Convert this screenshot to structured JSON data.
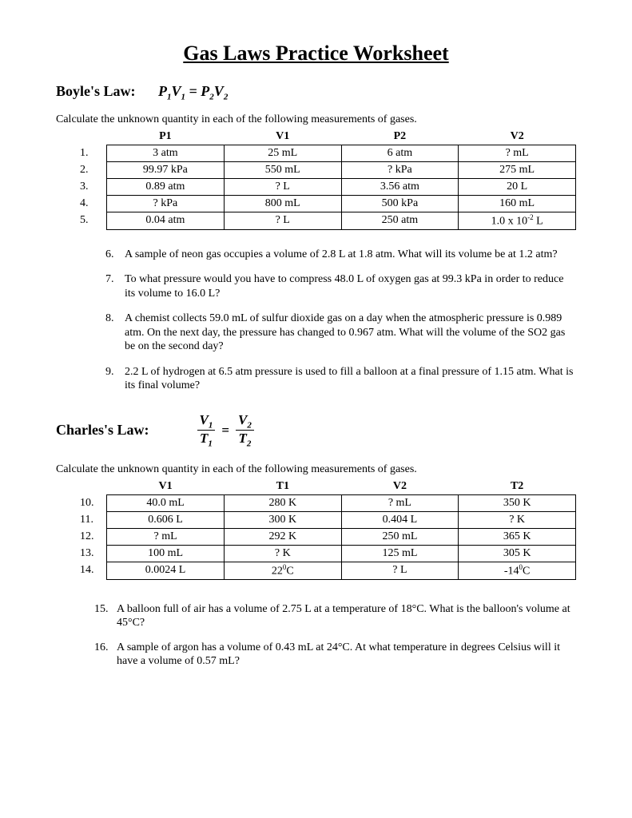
{
  "title": "Gas Laws Practice Worksheet",
  "section1": {
    "heading": "Boyle's Law:",
    "formula_html": "P<sub>1</sub>V<sub>1</sub> = P<sub>2</sub>V<sub>2</sub>",
    "instruction": "Calculate the unknown quantity in each of the following measurements of gases.",
    "columns": [
      "P1",
      "V1",
      "P2",
      "V2"
    ],
    "rows": [
      {
        "num": "1.",
        "cells": [
          "3 atm",
          "25 mL",
          "6 atm",
          "? mL"
        ]
      },
      {
        "num": "2.",
        "cells": [
          "99.97 kPa",
          "550 mL",
          "? kPa",
          "275 mL"
        ]
      },
      {
        "num": "3.",
        "cells": [
          "0.89 atm",
          "? L",
          "3.56 atm",
          "20 L"
        ]
      },
      {
        "num": "4.",
        "cells": [
          "? kPa",
          "800 mL",
          "500 kPa",
          "160 mL"
        ]
      },
      {
        "num": "5.",
        "cells_html": [
          "0.04 atm",
          "? L",
          "250 atm",
          "1.0 x 10<sup>-2</sup> L"
        ]
      }
    ],
    "problems": [
      {
        "num": "6.",
        "text": "A sample of neon gas occupies a volume of 2.8 L at 1.8 atm. What will its volume be at 1.2 atm?"
      },
      {
        "num": "7.",
        "text": "To what pressure would you have to compress 48.0 L of oxygen gas at 99.3 kPa in order to reduce its volume to 16.0 L?"
      },
      {
        "num": "8.",
        "text": "A chemist collects 59.0 mL of sulfur dioxide gas on a day when the atmospheric pressure is 0.989 atm. On the next day, the pressure has changed to 0.967 atm. What will the volume of the SO2 gas be on the second day?"
      },
      {
        "num": "9.",
        "text": "2.2 L of hydrogen at 6.5 atm pressure is used to fill a balloon at a final pressure of 1.15 atm. What is its final volume?"
      }
    ]
  },
  "section2": {
    "heading": "Charles's Law:",
    "frac1_top_html": "V<sub>1</sub>",
    "frac1_bot_html": "T<sub>1</sub>",
    "frac2_top_html": "V<sub>2</sub>",
    "frac2_bot_html": "T<sub>2</sub>",
    "instruction": "Calculate the unknown quantity in each of the following measurements of gases.",
    "columns": [
      "V1",
      "T1",
      "V2",
      "T2"
    ],
    "rows": [
      {
        "num": "10.",
        "cells": [
          "40.0 mL",
          "280 K",
          "? mL",
          "350 K"
        ]
      },
      {
        "num": "11.",
        "cells": [
          "0.606 L",
          "300 K",
          "0.404 L",
          "? K"
        ]
      },
      {
        "num": "12.",
        "cells": [
          "? mL",
          "292 K",
          "250 mL",
          "365 K"
        ]
      },
      {
        "num": "13.",
        "cells": [
          "100 mL",
          "? K",
          "125 mL",
          "305 K"
        ]
      },
      {
        "num": "14.",
        "cells_html": [
          "0.0024 L",
          "22<sup>0</sup>C",
          "? L",
          "-14<sup>0</sup>C"
        ]
      }
    ],
    "problems": [
      {
        "num": "15.",
        "text": "A balloon full of air has a volume of 2.75 L at a temperature of 18°C. What is the balloon's volume at 45°C?"
      },
      {
        "num": "16.",
        "text": "A sample of argon has a volume of 0.43 mL at 24°C. At what temperature in degrees Celsius will it have a volume of 0.57 mL?"
      }
    ]
  }
}
